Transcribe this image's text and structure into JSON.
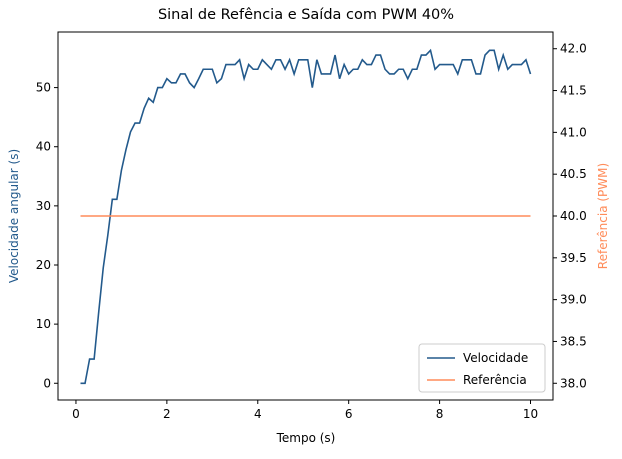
{
  "chart_data": {
    "type": "line",
    "title": "Sinal de Refência e Saída com PWM 40%",
    "xlabel": "Tempo (s)",
    "ylabel": "Velocidade angular (s)",
    "y2label": "Referência (PWM)",
    "xlim": [
      -0.395,
      10.495
    ],
    "xticks": [
      0,
      2,
      4,
      6,
      8,
      10
    ],
    "ylim": [
      -2.83,
      59.4
    ],
    "yticks": [
      0,
      10,
      20,
      30,
      40,
      50
    ],
    "y2lim": [
      37.8,
      42.2
    ],
    "y2ticks": [
      {
        "value": 38,
        "label": "38.0"
      },
      38.5,
      {
        "value": 39,
        "label": "39.0"
      },
      39.5,
      {
        "value": 40,
        "label": "40.0"
      },
      40.5,
      {
        "value": 41,
        "label": "41.0"
      },
      41.5,
      {
        "value": 42,
        "label": "42.0"
      }
    ],
    "legend": "lower right",
    "ylabel_color": "#235a8c",
    "y2label_color": "#ff8c5a",
    "series": [
      {
        "name": "Velocidade",
        "color": "#235a8c",
        "x": [
          0.1,
          0.2,
          0.3,
          0.4,
          0.5,
          0.6,
          0.7,
          0.8,
          0.9,
          1.0,
          1.1,
          1.2,
          1.3,
          1.4,
          1.5,
          1.6,
          1.7,
          1.8,
          1.9,
          2.0,
          2.1,
          2.2,
          2.3,
          2.4,
          2.5,
          2.6,
          2.7,
          2.8,
          2.9,
          3.0,
          3.1,
          3.2,
          3.3,
          3.4,
          3.5,
          3.6,
          3.7,
          3.8,
          3.9,
          4.0,
          4.1,
          4.2,
          4.3,
          4.4,
          4.5,
          4.6,
          4.7,
          4.8,
          4.9,
          5.0,
          5.1,
          5.2,
          5.3,
          5.4,
          5.5,
          5.6,
          5.7,
          5.8,
          5.9,
          6.0,
          6.1,
          6.2,
          6.3,
          6.4,
          6.5,
          6.6,
          6.7,
          6.8,
          6.9,
          7.0,
          7.1,
          7.2,
          7.3,
          7.4,
          7.5,
          7.6,
          7.7,
          7.8,
          7.9,
          8.0,
          8.1,
          8.2,
          8.3,
          8.4,
          8.5,
          8.6,
          8.7,
          8.8,
          8.9,
          9.0,
          9.1,
          9.2,
          9.3,
          9.4,
          9.5,
          9.6,
          9.7,
          9.8,
          9.9,
          10.0
        ],
        "values": [
          0,
          0,
          4.1,
          4.1,
          12,
          19.5,
          25,
          31.1,
          31.1,
          36,
          39.5,
          42.5,
          44,
          44,
          46.5,
          48.2,
          47.5,
          50,
          50,
          51.5,
          50.8,
          50.8,
          52.3,
          52.3,
          50.8,
          50,
          51.5,
          53.1,
          53.1,
          53.1,
          50.8,
          51.5,
          53.9,
          53.9,
          53.9,
          54.7,
          51.5,
          53.9,
          53.1,
          53.1,
          54.7,
          53.9,
          53.1,
          54.7,
          54.7,
          53.1,
          54.7,
          52.3,
          54.7,
          54.7,
          54.7,
          50,
          54.7,
          52.3,
          52.3,
          52.3,
          55.5,
          51.5,
          53.9,
          52.3,
          53.1,
          53.1,
          54.7,
          53.9,
          53.9,
          55.5,
          55.5,
          53.1,
          52.3,
          52.3,
          53.1,
          53.1,
          51.5,
          53.1,
          53.1,
          55.5,
          55.5,
          56.3,
          53.1,
          53.9,
          53.9,
          53.9,
          53.9,
          52.3,
          54.7,
          54.7,
          54.7,
          52.3,
          52.3,
          55.5,
          56.3,
          56.3,
          53.1,
          55.5,
          53.1,
          53.9,
          53.9,
          53.9,
          54.7,
          52.3
        ]
      },
      {
        "name": "Referência",
        "color": "#ff8c5a",
        "axis": "y2",
        "x": [
          0.1,
          10.0
        ],
        "values": [
          40,
          40
        ]
      }
    ]
  }
}
